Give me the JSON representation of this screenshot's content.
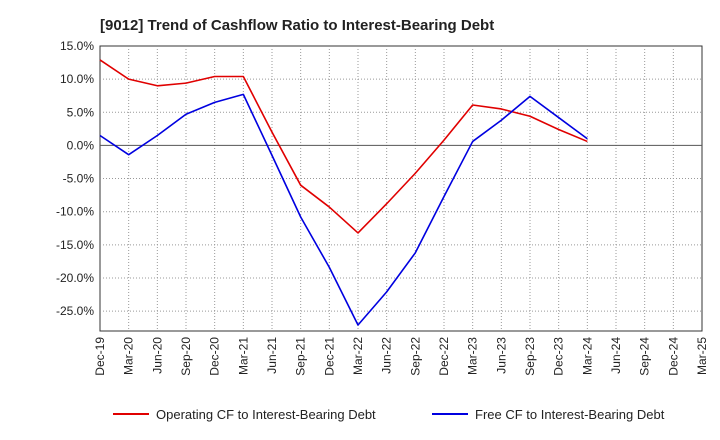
{
  "chart_data": {
    "type": "line",
    "title": "[9012]  Trend of Cashflow Ratio to Interest-Bearing Debt",
    "xlabel": "",
    "ylabel": "",
    "ylim": [
      -28,
      15
    ],
    "y_ticks": [
      "15.0%",
      "10.0%",
      "5.0%",
      "0.0%",
      "-5.0%",
      "-10.0%",
      "-15.0%",
      "-20.0%",
      "-25.0%"
    ],
    "y_tick_values": [
      15,
      10,
      5,
      0,
      -5,
      -10,
      -15,
      -20,
      -25
    ],
    "categories": [
      "Dec-19",
      "Mar-20",
      "Jun-20",
      "Sep-20",
      "Dec-20",
      "Mar-21",
      "Jun-21",
      "Sep-21",
      "Dec-21",
      "Mar-22",
      "Jun-22",
      "Sep-22",
      "Dec-22",
      "Mar-23",
      "Jun-23",
      "Sep-23",
      "Dec-23",
      "Mar-24",
      "Jun-24",
      "Sep-24",
      "Dec-24",
      "Mar-25"
    ],
    "grid": true,
    "legend_position": "bottom",
    "series": [
      {
        "name": "Operating CF to Interest-Bearing Debt",
        "color": "#e00000",
        "values": [
          12.9,
          10.0,
          9.0,
          9.4,
          10.4,
          10.4,
          2.0,
          -6.0,
          -9.3,
          -13.2,
          -8.8,
          -4.2,
          0.8,
          6.1,
          5.5,
          4.4,
          2.4,
          0.6,
          null,
          null,
          null,
          null
        ]
      },
      {
        "name": "Free CF to Interest-Bearing Debt",
        "color": "#0000e0",
        "values": [
          1.5,
          -1.4,
          1.5,
          4.7,
          6.5,
          7.7,
          -1.5,
          -10.8,
          -18.4,
          -27.1,
          -22.1,
          -16.2,
          -7.7,
          0.6,
          3.8,
          7.4,
          4.2,
          1.0,
          null,
          null,
          null,
          null
        ]
      }
    ]
  }
}
